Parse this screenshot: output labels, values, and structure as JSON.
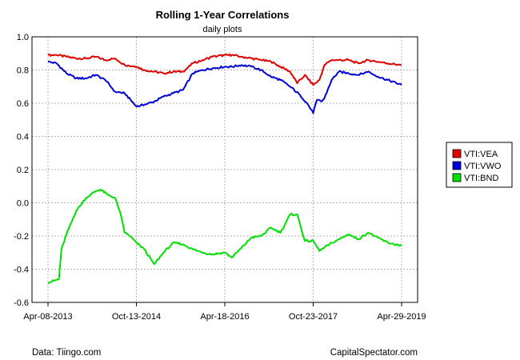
{
  "chart_data": {
    "type": "line",
    "title": "Rolling 1-Year Correlations",
    "subtitle": "daily plots",
    "xlabel": "",
    "ylabel": "",
    "ylim": [
      -0.6,
      1.0
    ],
    "y_ticks": [
      "1.0",
      "0.8",
      "0.6",
      "0.4",
      "0.2",
      "0.0",
      "-0.2",
      "-0.4",
      "-0.6"
    ],
    "x_tick_labels": [
      "Apr-08-2013",
      "Oct-13-2014",
      "Apr-18-2016",
      "Oct-23-2017",
      "Apr-29-2019"
    ],
    "x_ticks": [
      "2013-04-08",
      "2014-10-13",
      "2016-04-18",
      "2017-10-23",
      "2019-04-29"
    ],
    "xlim": [
      "2013-04-08",
      "2019-04-29"
    ],
    "grid": true,
    "legend_placement": "right",
    "series": [
      {
        "name": "VTI:VEA",
        "color": "#e00000",
        "points": [
          [
            "2013-04-08",
            0.89
          ],
          [
            "2013-06-01",
            0.89
          ],
          [
            "2013-08-01",
            0.88
          ],
          [
            "2013-10-01",
            0.87
          ],
          [
            "2013-12-01",
            0.87
          ],
          [
            "2014-02-01",
            0.88
          ],
          [
            "2014-04-01",
            0.86
          ],
          [
            "2014-06-01",
            0.87
          ],
          [
            "2014-08-01",
            0.83
          ],
          [
            "2014-10-13",
            0.82
          ],
          [
            "2014-12-01",
            0.8
          ],
          [
            "2015-02-01",
            0.79
          ],
          [
            "2015-04-01",
            0.78
          ],
          [
            "2015-06-01",
            0.79
          ],
          [
            "2015-08-01",
            0.79
          ],
          [
            "2015-10-01",
            0.84
          ],
          [
            "2015-12-01",
            0.86
          ],
          [
            "2016-02-01",
            0.88
          ],
          [
            "2016-04-18",
            0.89
          ],
          [
            "2016-06-01",
            0.89
          ],
          [
            "2016-08-01",
            0.88
          ],
          [
            "2016-10-01",
            0.87
          ],
          [
            "2016-12-01",
            0.86
          ],
          [
            "2017-02-01",
            0.85
          ],
          [
            "2017-04-01",
            0.82
          ],
          [
            "2017-06-01",
            0.79
          ],
          [
            "2017-07-15",
            0.72
          ],
          [
            "2017-09-01",
            0.77
          ],
          [
            "2017-10-23",
            0.71
          ],
          [
            "2017-12-01",
            0.74
          ],
          [
            "2018-01-01",
            0.83
          ],
          [
            "2018-02-15",
            0.86
          ],
          [
            "2018-04-01",
            0.86
          ],
          [
            "2018-06-01",
            0.86
          ],
          [
            "2018-08-01",
            0.84
          ],
          [
            "2018-10-01",
            0.86
          ],
          [
            "2018-12-01",
            0.85
          ],
          [
            "2019-02-01",
            0.84
          ],
          [
            "2019-04-29",
            0.83
          ]
        ]
      },
      {
        "name": "VTI:VWO",
        "color": "#0000d8",
        "points": [
          [
            "2013-04-08",
            0.85
          ],
          [
            "2013-06-01",
            0.84
          ],
          [
            "2013-08-01",
            0.78
          ],
          [
            "2013-10-01",
            0.75
          ],
          [
            "2013-12-01",
            0.75
          ],
          [
            "2014-02-01",
            0.77
          ],
          [
            "2014-04-01",
            0.74
          ],
          [
            "2014-06-01",
            0.67
          ],
          [
            "2014-08-01",
            0.66
          ],
          [
            "2014-10-13",
            0.58
          ],
          [
            "2014-12-01",
            0.59
          ],
          [
            "2015-02-01",
            0.61
          ],
          [
            "2015-04-01",
            0.64
          ],
          [
            "2015-06-01",
            0.66
          ],
          [
            "2015-08-01",
            0.68
          ],
          [
            "2015-10-01",
            0.78
          ],
          [
            "2015-12-01",
            0.8
          ],
          [
            "2016-02-01",
            0.81
          ],
          [
            "2016-04-18",
            0.82
          ],
          [
            "2016-06-01",
            0.82
          ],
          [
            "2016-08-01",
            0.83
          ],
          [
            "2016-10-01",
            0.82
          ],
          [
            "2016-12-01",
            0.8
          ],
          [
            "2017-02-01",
            0.76
          ],
          [
            "2017-04-01",
            0.74
          ],
          [
            "2017-06-01",
            0.7
          ],
          [
            "2017-08-01",
            0.65
          ],
          [
            "2017-09-15",
            0.6
          ],
          [
            "2017-10-23",
            0.54
          ],
          [
            "2017-11-15",
            0.62
          ],
          [
            "2017-12-15",
            0.61
          ],
          [
            "2018-01-01",
            0.63
          ],
          [
            "2018-02-15",
            0.74
          ],
          [
            "2018-04-01",
            0.79
          ],
          [
            "2018-06-01",
            0.78
          ],
          [
            "2018-08-01",
            0.77
          ],
          [
            "2018-10-01",
            0.79
          ],
          [
            "2018-12-01",
            0.76
          ],
          [
            "2019-02-01",
            0.74
          ],
          [
            "2019-04-29",
            0.71
          ]
        ]
      },
      {
        "name": "VTI:BND",
        "color": "#00e000",
        "points": [
          [
            "2013-04-08",
            -0.48
          ],
          [
            "2013-05-15",
            -0.47
          ],
          [
            "2013-06-15",
            -0.46
          ],
          [
            "2013-07-01",
            -0.28
          ],
          [
            "2013-08-01",
            -0.19
          ],
          [
            "2013-10-01",
            -0.05
          ],
          [
            "2013-12-01",
            0.03
          ],
          [
            "2014-02-01",
            0.07
          ],
          [
            "2014-03-01",
            0.08
          ],
          [
            "2014-04-15",
            0.05
          ],
          [
            "2014-06-01",
            0.03
          ],
          [
            "2014-07-01",
            -0.05
          ],
          [
            "2014-08-01",
            -0.18
          ],
          [
            "2014-09-01",
            -0.2
          ],
          [
            "2014-10-13",
            -0.24
          ],
          [
            "2014-12-01",
            -0.28
          ],
          [
            "2015-02-01",
            -0.37
          ],
          [
            "2015-04-01",
            -0.3
          ],
          [
            "2015-06-01",
            -0.24
          ],
          [
            "2015-08-01",
            -0.25
          ],
          [
            "2015-10-01",
            -0.28
          ],
          [
            "2015-12-01",
            -0.3
          ],
          [
            "2016-02-01",
            -0.31
          ],
          [
            "2016-04-18",
            -0.3
          ],
          [
            "2016-06-01",
            -0.33
          ],
          [
            "2016-08-01",
            -0.27
          ],
          [
            "2016-10-01",
            -0.21
          ],
          [
            "2016-12-01",
            -0.2
          ],
          [
            "2017-02-01",
            -0.15
          ],
          [
            "2017-04-01",
            -0.18
          ],
          [
            "2017-06-01",
            -0.07
          ],
          [
            "2017-07-15",
            -0.07
          ],
          [
            "2017-09-01",
            -0.23
          ],
          [
            "2017-10-23",
            -0.23
          ],
          [
            "2017-12-01",
            -0.29
          ],
          [
            "2018-02-01",
            -0.25
          ],
          [
            "2018-04-01",
            -0.22
          ],
          [
            "2018-06-01",
            -0.19
          ],
          [
            "2018-08-01",
            -0.22
          ],
          [
            "2018-10-01",
            -0.18
          ],
          [
            "2018-12-01",
            -0.21
          ],
          [
            "2019-02-01",
            -0.24
          ],
          [
            "2019-04-29",
            -0.26
          ]
        ]
      }
    ],
    "footer_left": "Data: Tiingo.com",
    "footer_right": "CapitalSpectator.com"
  }
}
